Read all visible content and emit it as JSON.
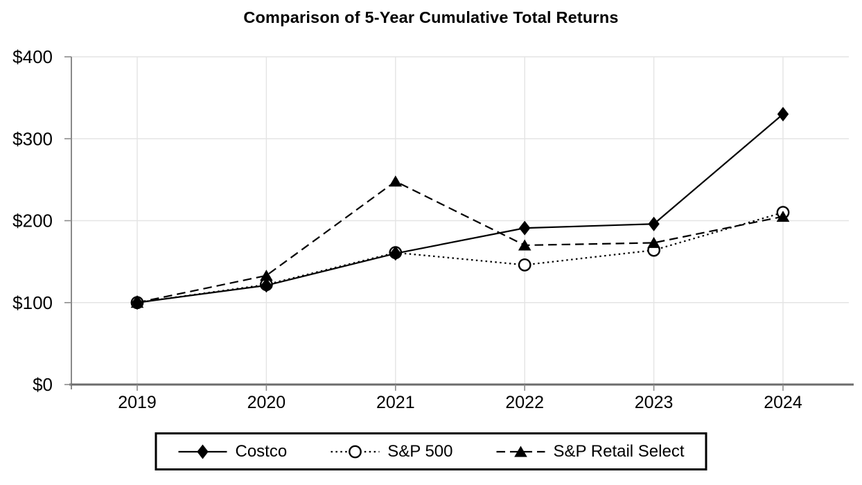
{
  "chart_data": {
    "type": "line",
    "title": "Comparison of 5-Year Cumulative Total Returns",
    "categories": [
      "2019",
      "2020",
      "2021",
      "2022",
      "2023",
      "2024"
    ],
    "series": [
      {
        "name": "Costco",
        "values": [
          100,
          121,
          160,
          191,
          196,
          330
        ],
        "line_style": "solid",
        "marker": "diamond-filled",
        "color": "#000000",
        "z": 2
      },
      {
        "name": "S&P 500",
        "values": [
          100,
          122,
          161,
          146,
          164,
          210
        ],
        "line_style": "dotted",
        "marker": "circle-open",
        "color": "#000000",
        "z": 0
      },
      {
        "name": "S&P Retail Select",
        "values": [
          100,
          133,
          248,
          170,
          173,
          205
        ],
        "line_style": "dashed",
        "marker": "triangle-filled",
        "color": "#000000",
        "z": 1
      }
    ],
    "ylim": [
      0,
      400
    ],
    "yticks": [
      {
        "value": 0,
        "label": "$0"
      },
      {
        "value": 100,
        "label": "$100"
      },
      {
        "value": 200,
        "label": "$200"
      },
      {
        "value": 300,
        "label": "$300"
      },
      {
        "value": 400,
        "label": "$400"
      }
    ],
    "grid": true,
    "legend_position": "bottom",
    "styles": {
      "gridline_color": "#e4e4e4",
      "axis_color": "#8a8a8a",
      "baseline_color": "#6b6b6b",
      "series_color": "#000000",
      "background": "#ffffff"
    }
  }
}
